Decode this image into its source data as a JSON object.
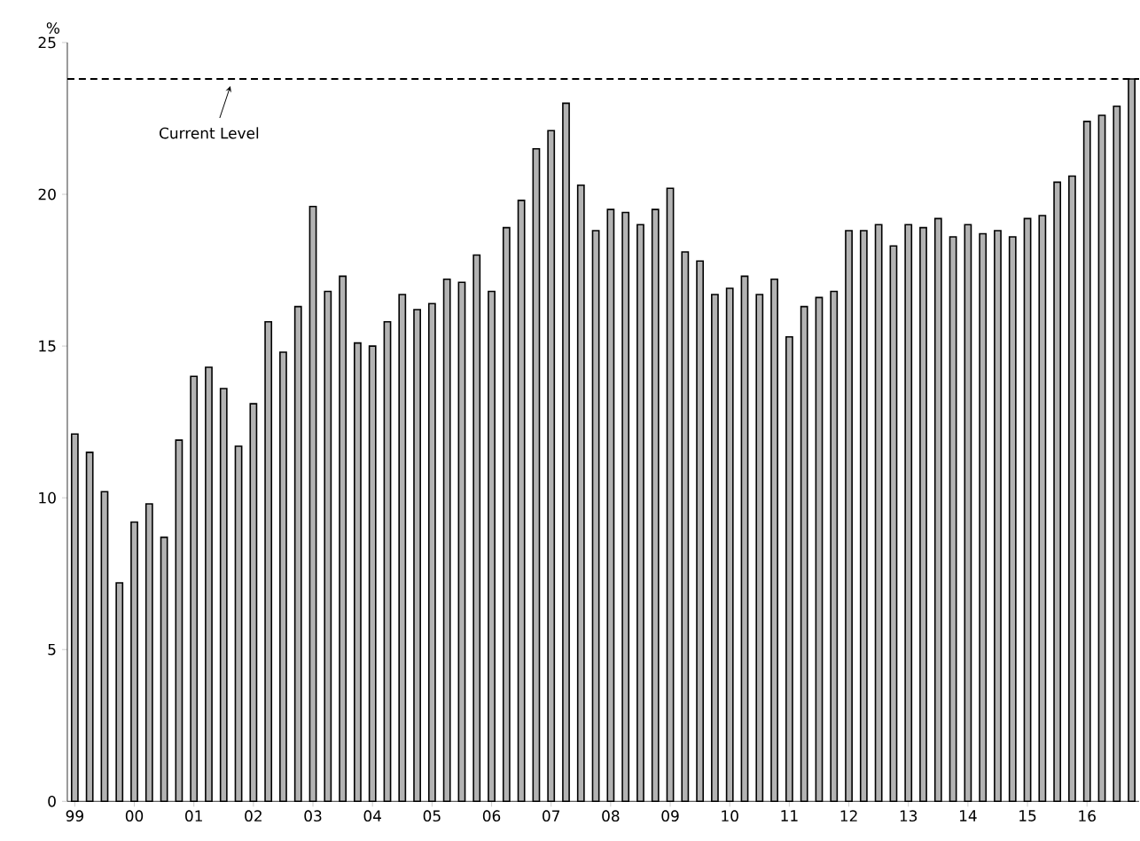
{
  "chart_data": {
    "type": "bar",
    "ylabel": "%",
    "categories": [
      "99",
      null,
      null,
      null,
      "00",
      null,
      null,
      null,
      "01",
      null,
      null,
      null,
      "02",
      null,
      null,
      null,
      "03",
      null,
      null,
      null,
      "04",
      null,
      null,
      null,
      "05",
      null,
      null,
      null,
      "06",
      null,
      null,
      null,
      "07",
      null,
      null,
      null,
      "08",
      null,
      null,
      null,
      "09",
      null,
      null,
      null,
      "10",
      null,
      null,
      null,
      "11",
      null,
      null,
      null,
      "12",
      null,
      null,
      null,
      "13",
      null,
      null,
      null,
      "14",
      null,
      null,
      null,
      "15",
      null,
      null,
      null,
      "16",
      null,
      null,
      null
    ],
    "values": [
      12.1,
      11.5,
      10.2,
      7.2,
      9.2,
      9.8,
      8.7,
      11.9,
      14.0,
      14.3,
      13.6,
      11.7,
      13.1,
      15.8,
      14.8,
      16.3,
      19.6,
      16.8,
      17.3,
      15.1,
      15.0,
      15.8,
      16.7,
      16.2,
      16.4,
      17.2,
      17.1,
      18.0,
      16.8,
      18.9,
      19.8,
      21.5,
      22.1,
      23.0,
      20.3,
      18.8,
      19.5,
      19.4,
      19.0,
      19.5,
      20.2,
      18.1,
      17.8,
      16.7,
      16.9,
      17.3,
      16.7,
      17.2,
      15.3,
      16.3,
      16.6,
      16.8,
      18.8,
      18.8,
      19.0,
      18.3,
      19.0,
      18.9,
      19.2,
      18.6,
      19.0,
      18.7,
      18.8,
      18.6,
      19.2,
      19.3,
      20.4,
      20.6,
      22.4,
      22.6,
      22.9,
      23.8
    ],
    "color": "#b3b3b3",
    "ylim": [
      0,
      25
    ],
    "yticks": [
      0,
      5,
      10,
      15,
      20,
      25
    ],
    "ref_lines": [
      {
        "axis": "y",
        "value": 23.8,
        "label": "Current Level",
        "line_style": "dashed",
        "color": "#000000"
      }
    ]
  }
}
